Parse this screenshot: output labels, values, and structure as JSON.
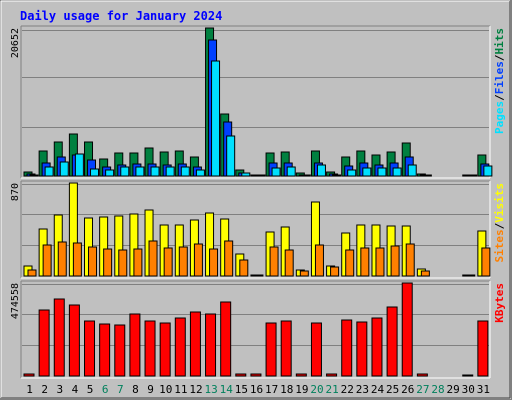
{
  "title": "Daily usage for January 2024",
  "colors": {
    "background": "#C0C0C0",
    "title": "#0000FF",
    "hits": "#008040",
    "files": "#0040FF",
    "pages": "#00E0FF",
    "visits": "#FFFF00",
    "sites": "#FF8000",
    "kbytes": "#FF0000",
    "weekend_day_label": "#00805C"
  },
  "chart_data": [
    {
      "type": "bar",
      "name": "hits-files-pages",
      "categories": [
        "1",
        "2",
        "3",
        "4",
        "5",
        "6",
        "7",
        "8",
        "9",
        "10",
        "11",
        "12",
        "13",
        "14",
        "15",
        "16",
        "17",
        "18",
        "19",
        "20",
        "21",
        "22",
        "23",
        "24",
        "25",
        "26",
        "27",
        "28",
        "29",
        "30",
        "31"
      ],
      "weekend_days": [
        "6",
        "7",
        "13",
        "14",
        "20",
        "21",
        "27",
        "28"
      ],
      "y_max_label": "20652",
      "ylim": [
        0,
        20652
      ],
      "y_axis_labels": [
        {
          "text": "Pages",
          "color": "#00E0FF"
        },
        {
          "text": "/",
          "color": "#000000"
        },
        {
          "text": "Files",
          "color": "#0040FF"
        },
        {
          "text": "/",
          "color": "#000000"
        },
        {
          "text": "Hits",
          "color": "#008040"
        }
      ],
      "series": [
        {
          "name": "Hits",
          "color": "#008040",
          "values": [
            500,
            3500,
            4800,
            5800,
            4800,
            2400,
            3200,
            3200,
            3900,
            3400,
            3500,
            2700,
            20652,
            8600,
            900,
            200,
            3200,
            3300,
            350,
            3500,
            550,
            2600,
            3500,
            2900,
            3300,
            4600,
            300,
            0,
            0,
            150,
            3000
          ]
        },
        {
          "name": "Files",
          "color": "#0040FF",
          "values": [
            300,
            1800,
            2600,
            2900,
            2300,
            1200,
            1600,
            1700,
            1700,
            1600,
            1700,
            1300,
            19000,
            7500,
            400,
            100,
            1800,
            1800,
            200,
            1800,
            300,
            1400,
            1800,
            1600,
            1800,
            2600,
            150,
            0,
            0,
            80,
            1700
          ]
        },
        {
          "name": "Pages",
          "color": "#00E0FF",
          "values": [
            200,
            1300,
            1900,
            3100,
            1000,
            900,
            1200,
            1300,
            1300,
            1200,
            1200,
            800,
            16100,
            5600,
            400,
            100,
            1100,
            1200,
            150,
            1600,
            200,
            800,
            1100,
            1100,
            1100,
            1500,
            100,
            0,
            0,
            60,
            1400
          ]
        }
      ]
    },
    {
      "type": "bar",
      "name": "visits-sites",
      "categories": [
        "1",
        "2",
        "3",
        "4",
        "5",
        "6",
        "7",
        "8",
        "9",
        "10",
        "11",
        "12",
        "13",
        "14",
        "15",
        "16",
        "17",
        "18",
        "19",
        "20",
        "21",
        "22",
        "23",
        "24",
        "25",
        "26",
        "27",
        "28",
        "29",
        "30",
        "31"
      ],
      "y_max_label": "870",
      "ylim": [
        0,
        870
      ],
      "y_axis_labels": [
        {
          "text": "Sites",
          "color": "#FF8000"
        },
        {
          "text": "/",
          "color": "#000000"
        },
        {
          "text": "Visits",
          "color": "#FFFF00"
        }
      ],
      "series": [
        {
          "name": "Visits",
          "color": "#FFFF00",
          "values": [
            90,
            440,
            570,
            870,
            540,
            550,
            560,
            580,
            620,
            480,
            480,
            520,
            590,
            530,
            210,
            10,
            410,
            460,
            60,
            690,
            90,
            400,
            480,
            480,
            470,
            470,
            70,
            0,
            0,
            10,
            420
          ]
        },
        {
          "name": "Sites",
          "color": "#FF8000",
          "values": [
            60,
            290,
            320,
            310,
            270,
            250,
            240,
            250,
            330,
            260,
            270,
            300,
            250,
            330,
            150,
            10,
            270,
            240,
            50,
            290,
            80,
            240,
            260,
            260,
            280,
            300,
            50,
            0,
            0,
            10,
            260
          ]
        }
      ]
    },
    {
      "type": "bar",
      "name": "kbytes",
      "categories": [
        "1",
        "2",
        "3",
        "4",
        "5",
        "6",
        "7",
        "8",
        "9",
        "10",
        "11",
        "12",
        "13",
        "14",
        "15",
        "16",
        "17",
        "18",
        "19",
        "20",
        "21",
        "22",
        "23",
        "24",
        "25",
        "26",
        "27",
        "28",
        "29",
        "30",
        "31"
      ],
      "y_max_label": "474558",
      "ylim": [
        0,
        474558
      ],
      "y_axis_labels": [
        {
          "text": "KBytes",
          "color": "#FF0000"
        }
      ],
      "series": [
        {
          "name": "KBytes",
          "color": "#FF0000",
          "values": [
            10000,
            337000,
            394000,
            360000,
            283000,
            263000,
            260000,
            315000,
            283000,
            272000,
            296000,
            328000,
            318000,
            378000,
            10000,
            8000,
            268000,
            283000,
            10000,
            268000,
            8000,
            287000,
            278000,
            298000,
            354000,
            474558,
            8000,
            0,
            0,
            6000,
            280000
          ]
        }
      ]
    }
  ]
}
